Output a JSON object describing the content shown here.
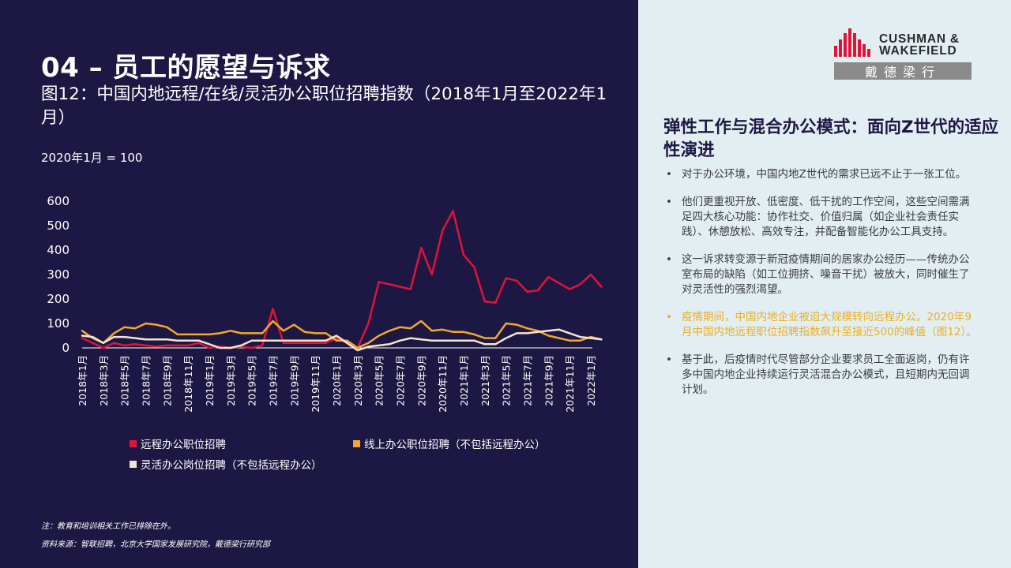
{
  "slide": {
    "title": "04 – 员工的愿望与诉求",
    "figure_title": "图12：中国内地远程/在线/灵活办公职位招聘指数（2018年1月至2022年1月）",
    "unit_note": "2020年1月 = 100",
    "footnote_1": "注：教育和培训相关工作已排除在外。",
    "footnote_2": "资料来源：智联招聘，北京大学国家发展研究院，戴德梁行研究部"
  },
  "logo": {
    "text": "CUSHMAN &\nWAKEFIELD",
    "chinese": "戴德梁行"
  },
  "sidebar": {
    "heading": "弹性工作与混合办公模式：面向Z世代的适应性演进",
    "bullet_marker": "•",
    "bullets": [
      "对于办公环境，中国内地Z世代的需求已远不止于一张工位。",
      "他们更重视开放、低密度、低干扰的工作空间，这些空间需满足四大核心功能：协作社交、价值归属（如企业社会责任实践）、休憩放松、高效专注，并配备智能化办公工具支持。",
      "这一诉求转变源于新冠疫情期间的居家办公经历——传统办公室布局的缺陷（如工位拥挤、噪音干扰）被放大，同时催生了对灵活性的强烈渴望。",
      "疫情期间，中国内地企业被迫大规模转向远程办公。2020年9月中国内地远程职位招聘指数飙升至接近500的峰值（图12）。",
      "基于此，后疫情时代尽管部分企业要求员工全面返岗，仍有许多中国内地企业持续运行灵活混合办公模式，且短期内无回调计划。"
    ]
  },
  "colors": {
    "panel_dark": "#1d1843",
    "panel_light": "#e3eef3",
    "remote": "#e0133a",
    "online": "#f0a830",
    "flexible": "#f4e4cf",
    "highlight": "#e8b020",
    "logo_red": "#e0133a",
    "logo_band": "#8a8a8a"
  },
  "chart_data": {
    "type": "line",
    "ylim": [
      0,
      600
    ],
    "yticks": [
      0,
      100,
      200,
      300,
      400,
      500,
      600
    ],
    "xtick_labels": [
      "2018年1月",
      "2018年3月",
      "2018年5月",
      "2018年7月",
      "2018年9月",
      "2018年11月",
      "2019年1月",
      "2019年3月",
      "2019年5月",
      "2019年7月",
      "2019年9月",
      "2019年11月",
      "2020年1月",
      "2020年3月",
      "2020年5月",
      "2020年7月",
      "2020年9月",
      "2020年11月",
      "2021年1月",
      "2021年3月",
      "2021年5月",
      "2021年7月",
      "2021年9月",
      "2021年11月",
      "2022年1月"
    ],
    "legend_position": "bottom",
    "series": [
      {
        "name": "远程办公职位招聘",
        "color": "#e0133a",
        "values": [
          40,
          20,
          0,
          20,
          10,
          15,
          10,
          5,
          10,
          10,
          10,
          20,
          0,
          5,
          0,
          5,
          0,
          10,
          160,
          20,
          20,
          20,
          20,
          20,
          40,
          20,
          0,
          100,
          270,
          260,
          250,
          240,
          410,
          300,
          480,
          560,
          380,
          330,
          190,
          185,
          285,
          275,
          230,
          235,
          290,
          265,
          240,
          260,
          300,
          250
        ]
      },
      {
        "name": "线上办公职位招聘（不包括远程办公）",
        "color": "#f0a830",
        "values": [
          70,
          40,
          20,
          60,
          85,
          80,
          100,
          95,
          85,
          55,
          55,
          55,
          55,
          60,
          70,
          60,
          60,
          60,
          110,
          70,
          95,
          65,
          60,
          60,
          30,
          30,
          0,
          20,
          50,
          70,
          85,
          80,
          110,
          70,
          75,
          65,
          65,
          55,
          40,
          40,
          100,
          95,
          80,
          70,
          50,
          40,
          30,
          30,
          45,
          35
        ]
      },
      {
        "name": "灵活办公岗位招聘（不包括远程办公）",
        "color": "#f4e4cf",
        "values": [
          50,
          45,
          20,
          45,
          45,
          40,
          35,
          35,
          35,
          30,
          30,
          30,
          15,
          0,
          0,
          10,
          30,
          30,
          30,
          30,
          30,
          30,
          30,
          30,
          50,
          20,
          -10,
          5,
          10,
          15,
          30,
          40,
          35,
          30,
          30,
          30,
          30,
          30,
          15,
          15,
          40,
          60,
          60,
          65,
          70,
          75,
          60,
          45,
          40,
          35
        ]
      }
    ]
  }
}
